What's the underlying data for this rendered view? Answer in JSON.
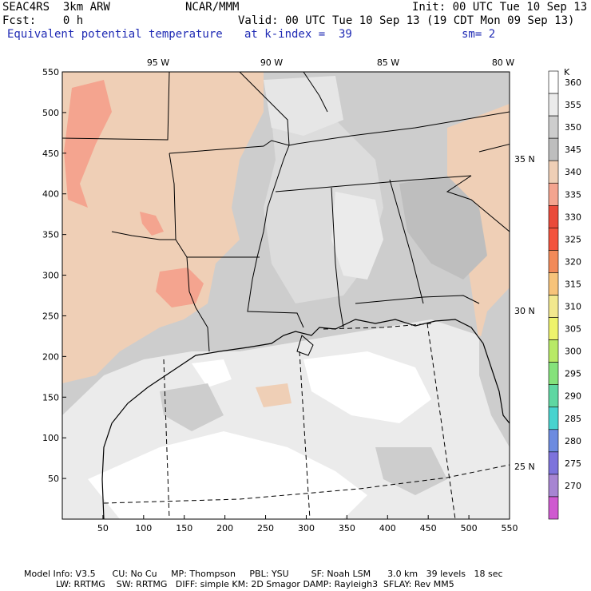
{
  "header": {
    "model": "SEAC4RS  3km ARW",
    "org": "NCAR/MMM",
    "init": "Init: 00 UTC Tue 10 Sep 13",
    "fcst": "Fcst:    0 h",
    "valid": "Valid: 00 UTC Tue 10 Sep 13 (19 CDT Mon 09 Sep 13)",
    "field": "Equivalent potential temperature",
    "level": "at k-index =  39",
    "smooth": "sm= 2"
  },
  "map": {
    "y_ticks": [
      "550",
      "500",
      "450",
      "400",
      "350",
      "300",
      "250",
      "200",
      "150",
      "100",
      "50"
    ],
    "x_ticks": [
      "50",
      "100",
      "150",
      "200",
      "250",
      "300",
      "350",
      "400",
      "450",
      "500",
      "550"
    ],
    "lon_labels": [
      "95 W",
      "90 W",
      "85 W",
      "80 W"
    ],
    "lat_labels": [
      "35 N",
      "30 N",
      "25 N"
    ]
  },
  "colorbar": {
    "unit": "K",
    "levels": [
      "360",
      "355",
      "350",
      "345",
      "340",
      "335",
      "330",
      "325",
      "320",
      "315",
      "310",
      "305",
      "300",
      "295",
      "290",
      "285",
      "280",
      "275",
      "270"
    ],
    "colors": [
      "#ffffff",
      "#ebebeb",
      "#cdcdcd",
      "#bebebe",
      "#efcfb6",
      "#f4a48f",
      "#ea4a3a",
      "#f4533d",
      "#f28a59",
      "#f7c37a",
      "#f2e88e",
      "#eef36c",
      "#b8ea66",
      "#85e27b",
      "#5fd7a2",
      "#48d3cf",
      "#6d8be0",
      "#7d73dc",
      "#a785d2",
      "#cf5ad0"
    ]
  },
  "footer": {
    "line1": "Model Info: V3.5      CU: No Cu     MP: Thompson     PBL: YSU        SF: Noah LSM      3.0 km   39 levels   18 sec",
    "line2": "LW: RRTMG    SW: RRTMG   DIFF: simple KM: 2D Smagor DAMP: Rayleigh3  SFLAY: Rev MM5"
  }
}
